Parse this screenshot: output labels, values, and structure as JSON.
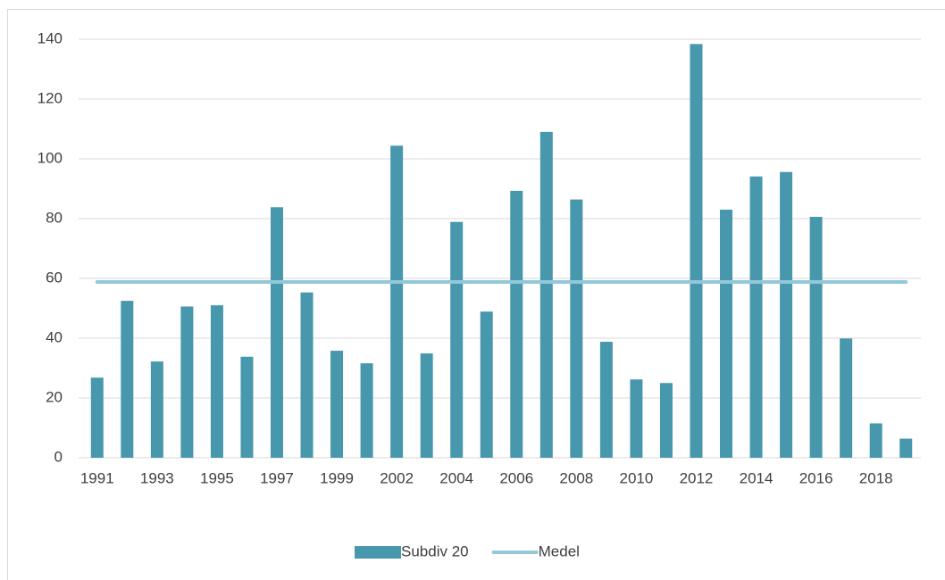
{
  "chart_data": {
    "type": "bar",
    "categories": [
      "1991",
      null,
      "1993",
      null,
      "1995",
      null,
      "1997",
      null,
      "1999",
      null,
      "2002",
      null,
      "2004",
      null,
      "2006",
      null,
      "2008",
      null,
      "2010",
      null,
      "2012",
      null,
      "2014",
      null,
      "2016",
      null,
      "2018",
      null
    ],
    "series": [
      {
        "name": "Subdiv 20",
        "type": "bar",
        "color": "#4797ad",
        "values": [
          26.8,
          52.5,
          32.2,
          50.6,
          51.0,
          33.8,
          83.8,
          55.3,
          35.8,
          31.6,
          104.4,
          34.9,
          78.9,
          48.9,
          89.3,
          109.0,
          86.4,
          38.8,
          26.2,
          25.0,
          138.4,
          83.0,
          94.1,
          95.6,
          80.6,
          39.9,
          11.5,
          6.4
        ]
      },
      {
        "name": "Medel",
        "type": "line",
        "color": "#92c8da",
        "values": [
          58.8,
          58.8,
          58.8,
          58.8,
          58.8,
          58.8,
          58.8,
          58.8,
          58.8,
          58.8,
          58.8,
          58.8,
          58.8,
          58.8,
          58.8,
          58.8,
          58.8,
          58.8,
          58.8,
          58.8,
          58.8,
          58.8,
          58.8,
          58.8,
          58.8,
          58.8,
          58.8,
          58.8
        ]
      }
    ],
    "ylim": [
      0,
      140
    ],
    "yticks": [
      0,
      20,
      40,
      60,
      80,
      100,
      120,
      140
    ],
    "grid": true,
    "legend": "bottom"
  }
}
